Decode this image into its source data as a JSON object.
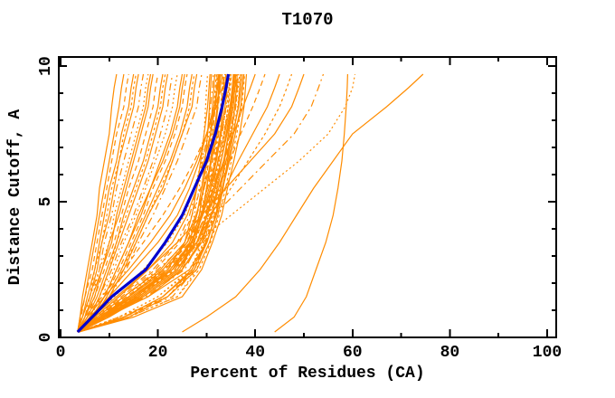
{
  "chart_data": {
    "type": "line",
    "title": "T1070",
    "xlabel": "Percent of Residues (CA)",
    "ylabel": "Distance Cutoff, A",
    "xlim": [
      0,
      102
    ],
    "ylim": [
      0,
      10.33
    ],
    "grid": false,
    "legend": "none",
    "x_major_ticks": [
      0,
      20,
      40,
      60,
      80,
      100
    ],
    "x_minor_ticks": [
      10,
      30,
      50,
      70,
      90
    ],
    "y_major_ticks": [
      0,
      5,
      10
    ],
    "y_minor_ticks": [
      1,
      2,
      3,
      4,
      6,
      7,
      8,
      9
    ],
    "colors": {
      "models": "#ff8c00",
      "reference": "#0000cd",
      "axis": "#000000",
      "background": "#ffffff"
    },
    "cutoffs": [
      0.2,
      0.75,
      1.5,
      2.5,
      3.5,
      4.5,
      5.5,
      6.5,
      7.5,
      8.5,
      9.2,
      9.7
    ],
    "reference_x": [
      3.5,
      6.5,
      10.5,
      17.5,
      21.5,
      25,
      27.5,
      30,
      31.8,
      33.2,
      34,
      34.5
    ],
    "models_x": [
      [
        3.5,
        4,
        4.5,
        5.5,
        6.5,
        7.5,
        8,
        9,
        10,
        10.5,
        11,
        11.5
      ],
      [
        3.5,
        4,
        5,
        6,
        7,
        8,
        9,
        10,
        11,
        12,
        12.5,
        13
      ],
      [
        3.5,
        4.2,
        5,
        6.5,
        7.5,
        8.5,
        9.5,
        10.5,
        11.5,
        13,
        13.5,
        14
      ],
      [
        3.5,
        4.5,
        5.5,
        7,
        8,
        9,
        10,
        11.5,
        12.5,
        14,
        14.5,
        15
      ],
      [
        3.5,
        4.5,
        6,
        7,
        8.5,
        9.5,
        10.5,
        12,
        13,
        14.5,
        15,
        15.5
      ],
      [
        3.5,
        4.5,
        6,
        7.5,
        8.5,
        10,
        11,
        12,
        13.5,
        15,
        15.5,
        16
      ],
      [
        3.5,
        5,
        6,
        8,
        9,
        10.5,
        11.5,
        13,
        14.5,
        16,
        16.5,
        17
      ],
      [
        3.5,
        5,
        6.5,
        8,
        10,
        11,
        12.5,
        14,
        15.5,
        17,
        17.5,
        18
      ],
      [
        3.5,
        5,
        6.5,
        8.5,
        10.5,
        11.5,
        13,
        14.5,
        16,
        17.5,
        18,
        18.5
      ],
      [
        3.5,
        5,
        7,
        8.5,
        10,
        12,
        13.5,
        15,
        16.5,
        18,
        18.5,
        19
      ],
      [
        3.5,
        5.5,
        7,
        9,
        11,
        12.5,
        14,
        16,
        17.5,
        19,
        19.5,
        20
      ],
      [
        3.5,
        5.5,
        7.5,
        9.5,
        11.5,
        13,
        15,
        17,
        18.5,
        20,
        20.5,
        21
      ],
      [
        3.5,
        6,
        8,
        10,
        11.5,
        13.5,
        15.5,
        17.5,
        19,
        20.5,
        21,
        21.5
      ],
      [
        3.5,
        6,
        8,
        10,
        12,
        14,
        16,
        18,
        19.5,
        21,
        21.5,
        22
      ],
      [
        3.5,
        6,
        8,
        10.5,
        12.5,
        15,
        17,
        19,
        20.5,
        22,
        22.5,
        23
      ],
      [
        3.5,
        6,
        8.5,
        11,
        13,
        15.5,
        17.5,
        19.5,
        21.5,
        23,
        23.5,
        24
      ],
      [
        3.5,
        6.5,
        9,
        11.5,
        14,
        16,
        18.5,
        20.5,
        22.5,
        24,
        24.5,
        25
      ],
      [
        3.5,
        6.5,
        9,
        11.5,
        14,
        16.5,
        18.5,
        21,
        23,
        24.5,
        25,
        25.5
      ],
      [
        3.5,
        6.5,
        9,
        12,
        14.5,
        17,
        19,
        21.5,
        23.5,
        25,
        25.5,
        26
      ],
      [
        3.5,
        7,
        9.5,
        12.5,
        15,
        17.5,
        20,
        22.5,
        24.5,
        26,
        26.5,
        27
      ],
      [
        3.5,
        7,
        9.5,
        12.5,
        15.5,
        18,
        20.5,
        23,
        25,
        26.5,
        27,
        27.5
      ],
      [
        3.5,
        7,
        10,
        13,
        15.5,
        18,
        21,
        23,
        25,
        27,
        27.5,
        28
      ],
      [
        3.5,
        7,
        10,
        13.5,
        16,
        19,
        21.5,
        24,
        26,
        28,
        28.5,
        29
      ],
      [
        3.7,
        7,
        13,
        21,
        26,
        27.5,
        28.5,
        29,
        29.5,
        29.8,
        30,
        30.2
      ],
      [
        3.7,
        8,
        15,
        23,
        26.5,
        28,
        29,
        29.7,
        30.2,
        30.6,
        30.8,
        31
      ],
      [
        3.7,
        9,
        18,
        25,
        27,
        28.5,
        29.3,
        30,
        30.8,
        31.2,
        31.5,
        31.7
      ],
      [
        3.7,
        7.5,
        14,
        22,
        26,
        28,
        29.5,
        30.5,
        31.2,
        31.8,
        32,
        32.2
      ],
      [
        3.7,
        8.5,
        16,
        24,
        27.5,
        29,
        30,
        31,
        31.8,
        32.3,
        32.6,
        32.8
      ],
      [
        3.7,
        12,
        22,
        27,
        28.8,
        29.8,
        30.8,
        31.6,
        32.3,
        32.9,
        33.2,
        33.4
      ],
      [
        3.7,
        8,
        15,
        23,
        27,
        29,
        30.5,
        31.8,
        32.8,
        33.4,
        33.8,
        34
      ],
      [
        3.7,
        13,
        23,
        27.5,
        29.3,
        30.4,
        31.3,
        32.3,
        33.2,
        34,
        34.3,
        34.5
      ],
      [
        3.7,
        14,
        24,
        28,
        29.6,
        30.7,
        31.6,
        32.6,
        33.6,
        34.4,
        34.8,
        35
      ],
      [
        3.7,
        8.5,
        16,
        24,
        28,
        30,
        31.5,
        33,
        34,
        35,
        35.3,
        35.5
      ],
      [
        3.7,
        9,
        17,
        25,
        29,
        31,
        32.2,
        33.5,
        34.5,
        35.5,
        35.8,
        36
      ],
      [
        3.7,
        13,
        22,
        27.5,
        29.8,
        31.6,
        32.9,
        34,
        35,
        36,
        36.3,
        36.5
      ],
      [
        3.7,
        9.5,
        18,
        26.5,
        30,
        32,
        33.2,
        34.5,
        35.5,
        36.5,
        36.8,
        37
      ],
      [
        3.7,
        14,
        24,
        28.5,
        30.8,
        32.6,
        33.9,
        35.1,
        36.2,
        37.2,
        37.6,
        37.8
      ],
      [
        3.7,
        15,
        25,
        29,
        31.2,
        33.1,
        34.3,
        35.6,
        36.8,
        37.7,
        38,
        38.2
      ],
      [
        3.7,
        7,
        12,
        19,
        24,
        26.5,
        28,
        29.2,
        30.2,
        30.8,
        31.2,
        31.4
      ],
      [
        3.7,
        6.5,
        11,
        17,
        22,
        25.5,
        27.5,
        29,
        30.5,
        31.5,
        32,
        32.3
      ],
      [
        3.7,
        6,
        10,
        15,
        20,
        24,
        26.5,
        28.5,
        30,
        31.5,
        32.3,
        32.7
      ],
      [
        3.7,
        5.5,
        9,
        14,
        18.5,
        22.5,
        25.5,
        28,
        30,
        31.8,
        32.8,
        33.2
      ],
      [
        3.7,
        5,
        8.5,
        13,
        17,
        21,
        24.5,
        27.5,
        30,
        32,
        33.2,
        33.8
      ],
      [
        3.7,
        8,
        14,
        22,
        25.5,
        27,
        28,
        28.8,
        29.5,
        30.2,
        30.5,
        30.7
      ],
      [
        3.7,
        8.5,
        15.5,
        23.5,
        27,
        28.5,
        29.5,
        30.3,
        31,
        31.5,
        31.8,
        32
      ],
      [
        3.7,
        9,
        16.5,
        24.5,
        27.5,
        29,
        30,
        30.8,
        31.5,
        32.2,
        32.5,
        32.7
      ],
      [
        3.7,
        9.5,
        17.5,
        25.5,
        28.5,
        30,
        31,
        31.8,
        32.5,
        33.2,
        33.5,
        33.7
      ],
      [
        3.7,
        12,
        20,
        27,
        29.7,
        31.2,
        32.1,
        32.9,
        33.7,
        34.4,
        34.6,
        34.8
      ],
      [
        3.7,
        13,
        21,
        27.5,
        30.1,
        31.9,
        32.9,
        33.7,
        34.5,
        35.2,
        35.4,
        35.6
      ],
      [
        3.7,
        14,
        22,
        28,
        30.6,
        32.3,
        33.4,
        34.3,
        35.1,
        35.8,
        36.1,
        36.3
      ],
      [
        3.7,
        7.5,
        13.5,
        21.5,
        26.5,
        28.8,
        30.2,
        31.3,
        32.2,
        33,
        33.3,
        33.5
      ],
      [
        3.7,
        8,
        14.5,
        22.5,
        27,
        29.2,
        30.8,
        32,
        33,
        33.8,
        34.2,
        34.4
      ],
      [
        3.7,
        8.5,
        15,
        23,
        27.5,
        29.8,
        31.2,
        32.5,
        33.5,
        34.5,
        34.9,
        35.1
      ],
      [
        3.7,
        9,
        16,
        24,
        28,
        30.2,
        31.8,
        33,
        34.2,
        35.2,
        35.6,
        35.8
      ],
      [
        3.7,
        9.5,
        17,
        25,
        28.8,
        30.8,
        32.2,
        33.6,
        34.8,
        35.8,
        36.3,
        36.6
      ],
      [
        3.7,
        12,
        20,
        26.5,
        29.4,
        31.3,
        32.7,
        34.1,
        35.3,
        36.4,
        36.8,
        37.1
      ],
      [
        3.7,
        13,
        21,
        27,
        30,
        31.9,
        33.3,
        34.7,
        35.9,
        37,
        37.4,
        37.7
      ],
      [
        3.7,
        6.5,
        11.5,
        18,
        23,
        26,
        28,
        29.5,
        30.8,
        31.8,
        32.2,
        32.5
      ],
      [
        3.7,
        7,
        12.5,
        19.5,
        24.5,
        27,
        28.8,
        30.2,
        31.4,
        32.4,
        32.8,
        33.1
      ],
      [
        3.7,
        7.5,
        13,
        20.5,
        25.5,
        27.8,
        29.5,
        31,
        32.2,
        33.2,
        33.7,
        34
      ],
      [
        3.7,
        8,
        14,
        21.5,
        26,
        28.5,
        30.2,
        31.7,
        33,
        34.1,
        34.6,
        34.9
      ],
      [
        3.7,
        8.5,
        15,
        22.5,
        26.8,
        29.2,
        30.9,
        32.4,
        33.7,
        34.8,
        35.3,
        35.6
      ],
      [
        3.7,
        9,
        15.5,
        23.5,
        27.3,
        29.7,
        31.4,
        32.9,
        34.2,
        35.4,
        35.9,
        36.2
      ],
      [
        3.7,
        9.5,
        16.5,
        24.5,
        28.2,
        30.5,
        32,
        33.5,
        34.8,
        36,
        36.5,
        36.8
      ],
      [
        3.7,
        10,
        17,
        25,
        28.6,
        31,
        32.5,
        34,
        35.4,
        36.6,
        37.1,
        37.4
      ],
      [
        3.7,
        8,
        14,
        21,
        26,
        29,
        31.5,
        33.5,
        35.5,
        37.5,
        39,
        40
      ],
      [
        3.7,
        8.5,
        15,
        22,
        27,
        30,
        32.5,
        34.8,
        37,
        39.5,
        41,
        42
      ],
      [
        3.7,
        9,
        15.5,
        23,
        28,
        31,
        33.8,
        36.5,
        39.5,
        42.5,
        44,
        45
      ],
      [
        3.7,
        9,
        16,
        23.5,
        28.5,
        31.8,
        35,
        38.5,
        42,
        45,
        46.5,
        47.5
      ],
      [
        3.7,
        7,
        12,
        18,
        24,
        29,
        34,
        39,
        44,
        47.5,
        49,
        50
      ],
      [
        3.7,
        7.5,
        13,
        20,
        26,
        31.5,
        37,
        42.5,
        48,
        51.5,
        53,
        54
      ],
      [
        3.7,
        8,
        14,
        21,
        28,
        35,
        42,
        49,
        55,
        58.5,
        60,
        60.5
      ],
      [
        25,
        30,
        36,
        41,
        45,
        48.5,
        52,
        56,
        60,
        67,
        71.5,
        74.5
      ],
      [
        44,
        48,
        50.5,
        52.5,
        54.5,
        56,
        57,
        57.8,
        58.3,
        58.7,
        58.9,
        59
      ]
    ]
  }
}
